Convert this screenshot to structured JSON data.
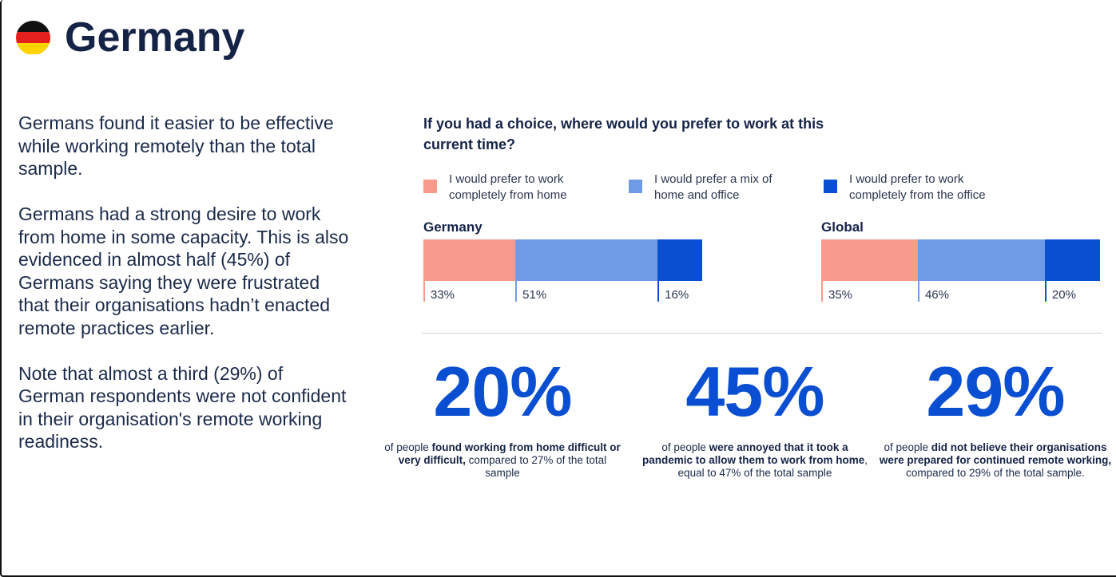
{
  "header": {
    "title": "Germany",
    "flag_icon": "germany-flag-icon",
    "flag_colors": [
      "#111111",
      "#e3201b",
      "#ffd400"
    ]
  },
  "summary": {
    "paragraphs": [
      "Germans found it easier to be effective while working remotely than the total sample.",
      "Germans had a strong desire to work from home in some capacity. This is also evidenced in almost half (45%) of Germans saying they were frustrated that their organisations hadn’t enacted remote practices earlier.",
      "Note that almost a third (29%) of German respondents were not confident in their organisation's remote working readiness."
    ]
  },
  "colors": {
    "home": "#f79a8c",
    "mix": "#6f9be6",
    "office": "#0a4fd1",
    "stat_accent": "#0a4fd1"
  },
  "chart_data": {
    "type": "bar",
    "subtype": "stacked-horizontal-100",
    "title": "If you had a choice, where would you prefer to work at this current time?",
    "legend": [
      "I would prefer to work\ncompletely from home",
      "I would prefer a mix of\nhome and office",
      "I would prefer to work\ncompletely from the office"
    ],
    "legend_placement": "top",
    "categories": [
      "Germany",
      "Global"
    ],
    "series": [
      {
        "name": "I would prefer to work completely from home",
        "values": [
          33,
          35
        ]
      },
      {
        "name": "I would prefer a mix of home and office",
        "values": [
          51,
          46
        ]
      },
      {
        "name": "I would prefer to work completely from the office",
        "values": [
          16,
          20
        ]
      }
    ],
    "value_labels": [
      [
        "33%",
        "51%",
        "16%"
      ],
      [
        "35%",
        "46%",
        "20%"
      ]
    ],
    "unit": "%",
    "xlim": [
      0,
      100
    ]
  },
  "stats": [
    {
      "number": "20%",
      "pre": "of people ",
      "bold": "found working from home difficult or very difficult,",
      "post": " compared to 27% of the total sample"
    },
    {
      "number": "45%",
      "pre": "of people ",
      "bold": "were annoyed that it took a pandemic to allow them  to work from home",
      "post": ", equal to 47% of the total sample"
    },
    {
      "number": "29%",
      "pre": "of people ",
      "bold": "did not believe their organisations were prepared for continued remote working,",
      "post": " compared to 29% of the total sample."
    }
  ]
}
